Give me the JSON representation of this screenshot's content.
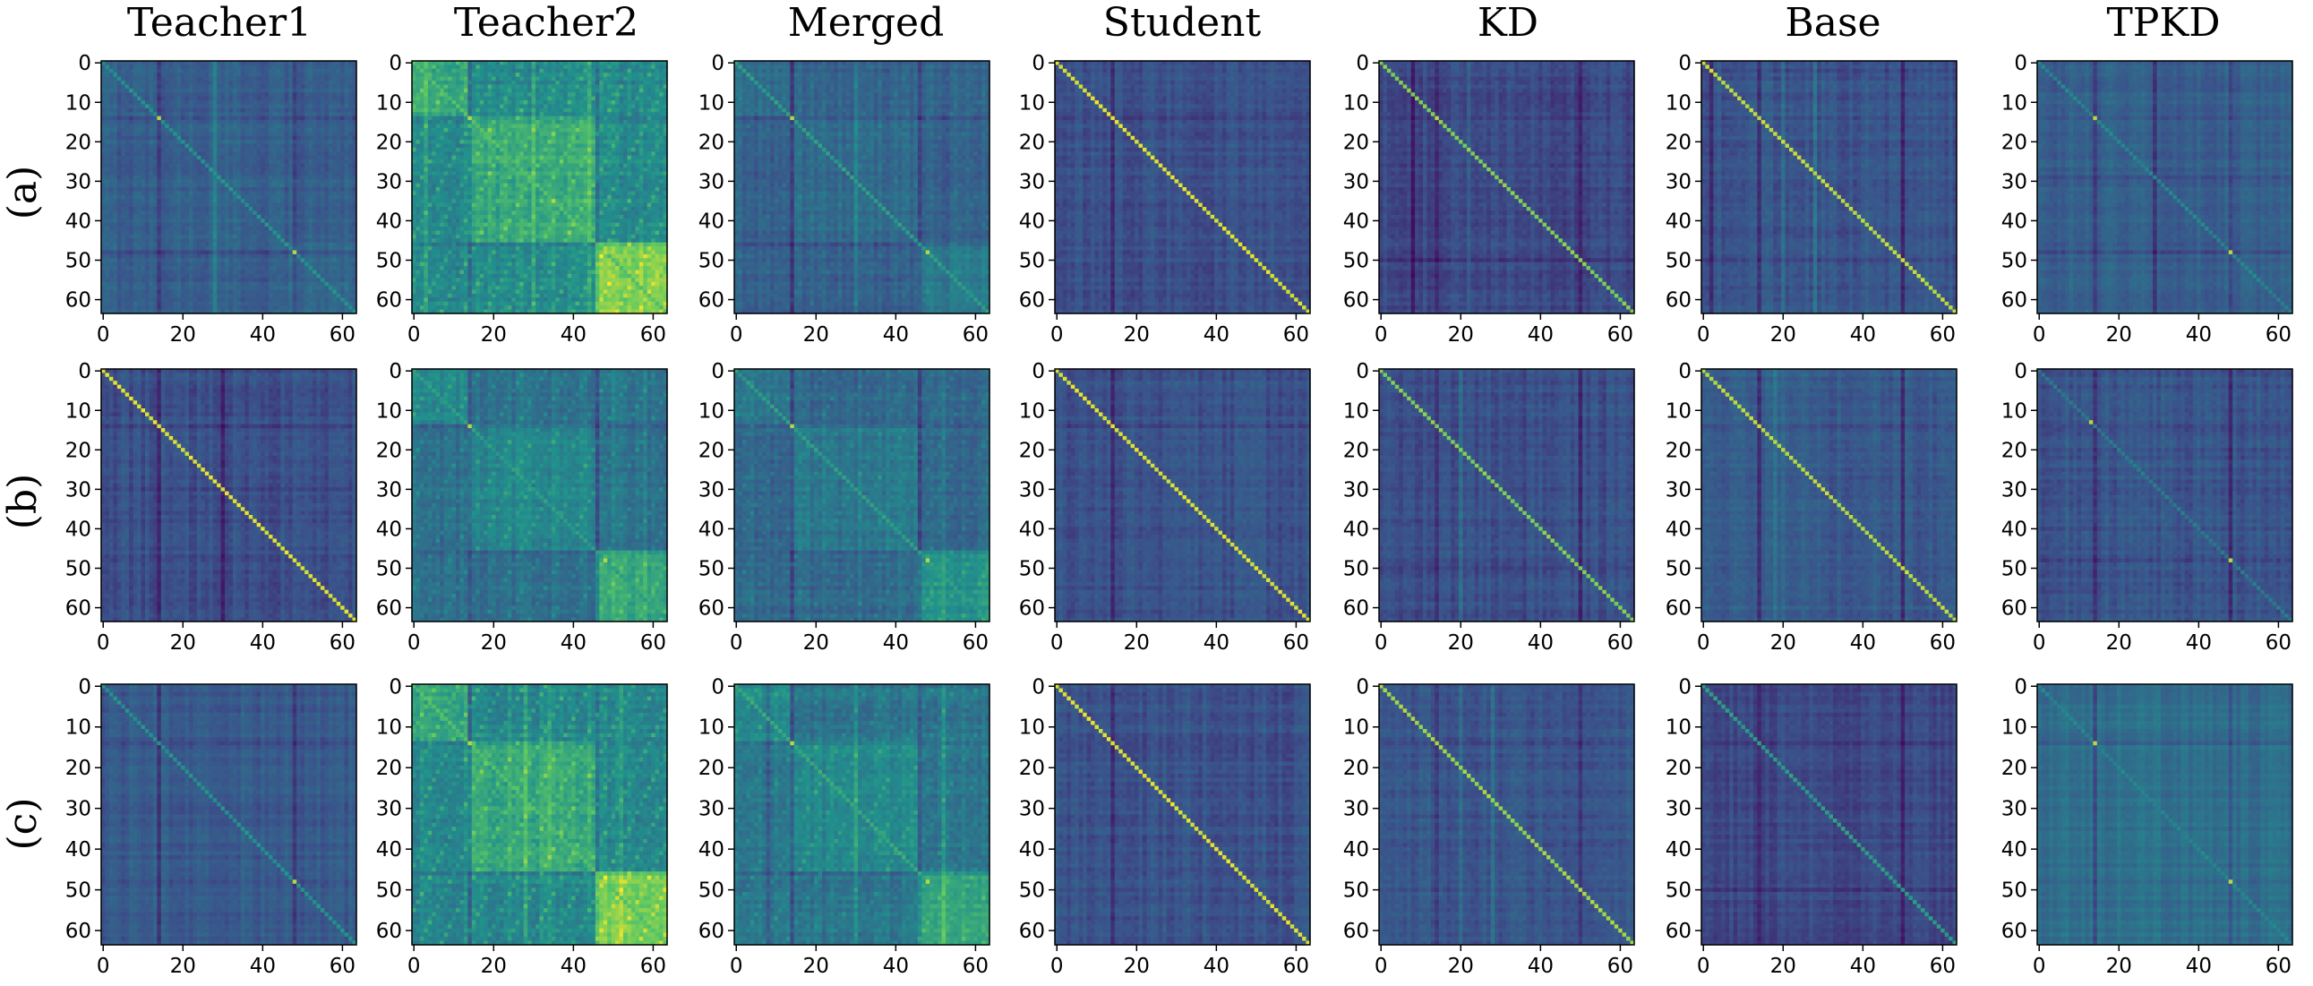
{
  "figure": {
    "row_labels": [
      "(a)",
      "(b)",
      "(c)"
    ],
    "column_titles": [
      "Teacher1",
      "Teacher2",
      "Merged",
      "Student",
      "KD",
      "Base",
      "TPKD"
    ]
  },
  "chart_data": {
    "type": "heatmap",
    "description": "7 x 3 grid of 64x64 similarity matrices",
    "matrix_size": 64,
    "x_ticks": [
      0,
      20,
      40,
      60
    ],
    "x_tick_labels": [
      "0",
      "20",
      "40",
      "60"
    ],
    "y_ticks": [
      0,
      10,
      20,
      30,
      40,
      50,
      60
    ],
    "y_tick_labels": [
      "0",
      "10",
      "20",
      "30",
      "40",
      "50",
      "60"
    ],
    "xlim": [
      0,
      63
    ],
    "ylim": [
      63,
      0
    ],
    "colormap": "viridis",
    "colormap_stops": [
      "#440154",
      "#3b528b",
      "#21918c",
      "#5ec962",
      "#fde725"
    ],
    "panels": [
      {
        "row": "(a)",
        "column": "Teacher1",
        "base": 0.3,
        "diag": 0.5,
        "dark_cols": [
          14,
          48
        ],
        "bright_cols": [
          28
        ],
        "diag_highlights": [
          14,
          48
        ],
        "block_strength": 0.02,
        "noise": 0.05
      },
      {
        "row": "(a)",
        "column": "Teacher2",
        "base": 0.52,
        "diag": 0.7,
        "dark_cols": [
          14,
          46
        ],
        "bright_cols": [
          3,
          30,
          44
        ],
        "diag_highlights": [
          14,
          35,
          48
        ],
        "block_strength": 0.2,
        "noise": 0.1
      },
      {
        "row": "(a)",
        "column": "Merged",
        "base": 0.32,
        "diag": 0.55,
        "dark_cols": [
          14,
          46
        ],
        "bright_cols": [
          30
        ],
        "diag_highlights": [
          14,
          48
        ],
        "block_strength": 0.06,
        "noise": 0.06
      },
      {
        "row": "(a)",
        "column": "Student",
        "base": 0.25,
        "diag": 0.95,
        "dark_cols": [
          14
        ],
        "bright_cols": [],
        "diag_highlights": [],
        "block_strength": 0.0,
        "noise": 0.05
      },
      {
        "row": "(a)",
        "column": "KD",
        "base": 0.22,
        "diag": 0.8,
        "dark_cols": [
          8,
          14,
          50
        ],
        "bright_cols": [
          22
        ],
        "diag_highlights": [
          14
        ],
        "block_strength": 0.0,
        "noise": 0.05
      },
      {
        "row": "(a)",
        "column": "Base",
        "base": 0.26,
        "diag": 0.9,
        "dark_cols": [
          2,
          14,
          50
        ],
        "bright_cols": [
          20,
          28
        ],
        "diag_highlights": [
          5
        ],
        "block_strength": 0.0,
        "noise": 0.05
      },
      {
        "row": "(a)",
        "column": "TPKD",
        "base": 0.3,
        "diag": 0.45,
        "dark_cols": [
          14,
          29,
          48
        ],
        "bright_cols": [],
        "diag_highlights": [
          14,
          48
        ],
        "block_strength": 0.0,
        "noise": 0.04
      },
      {
        "row": "(b)",
        "column": "Teacher1",
        "base": 0.24,
        "diag": 0.95,
        "dark_cols": [
          14,
          30
        ],
        "bright_cols": [],
        "diag_highlights": [],
        "block_strength": 0.0,
        "noise": 0.05
      },
      {
        "row": "(b)",
        "column": "Teacher2",
        "base": 0.4,
        "diag": 0.55,
        "dark_cols": [
          14,
          46
        ],
        "bright_cols": [
          50,
          58
        ],
        "diag_highlights": [
          14,
          48
        ],
        "block_strength": 0.14,
        "noise": 0.07
      },
      {
        "row": "(b)",
        "column": "Merged",
        "base": 0.36,
        "diag": 0.55,
        "dark_cols": [
          14,
          46
        ],
        "bright_cols": [
          52
        ],
        "diag_highlights": [
          14,
          48
        ],
        "block_strength": 0.1,
        "noise": 0.07
      },
      {
        "row": "(b)",
        "column": "Student",
        "base": 0.25,
        "diag": 0.95,
        "dark_cols": [
          14
        ],
        "bright_cols": [],
        "diag_highlights": [],
        "block_strength": 0.0,
        "noise": 0.05
      },
      {
        "row": "(b)",
        "column": "KD",
        "base": 0.24,
        "diag": 0.8,
        "dark_cols": [
          14,
          50
        ],
        "bright_cols": [
          20
        ],
        "diag_highlights": [],
        "block_strength": 0.0,
        "noise": 0.05
      },
      {
        "row": "(b)",
        "column": "Base",
        "base": 0.28,
        "diag": 0.9,
        "dark_cols": [
          14,
          50
        ],
        "bright_cols": [
          18,
          20
        ],
        "diag_highlights": [
          5
        ],
        "block_strength": 0.0,
        "noise": 0.05
      },
      {
        "row": "(b)",
        "column": "TPKD",
        "base": 0.26,
        "diag": 0.4,
        "dark_cols": [
          14,
          48
        ],
        "bright_cols": [],
        "diag_highlights": [
          13,
          48
        ],
        "block_strength": 0.0,
        "noise": 0.05
      },
      {
        "row": "(c)",
        "column": "Teacher1",
        "base": 0.28,
        "diag": 0.5,
        "dark_cols": [
          14,
          48
        ],
        "bright_cols": [],
        "diag_highlights": [
          48
        ],
        "block_strength": 0.0,
        "noise": 0.04
      },
      {
        "row": "(c)",
        "column": "Teacher2",
        "base": 0.52,
        "diag": 0.7,
        "dark_cols": [
          14,
          46
        ],
        "bright_cols": [
          28,
          34,
          52
        ],
        "diag_highlights": [
          14,
          48
        ],
        "block_strength": 0.2,
        "noise": 0.1
      },
      {
        "row": "(c)",
        "column": "Merged",
        "base": 0.42,
        "diag": 0.6,
        "dark_cols": [
          8,
          14,
          46
        ],
        "bright_cols": [
          30,
          52
        ],
        "diag_highlights": [
          14,
          48
        ],
        "block_strength": 0.12,
        "noise": 0.08
      },
      {
        "row": "(c)",
        "column": "Student",
        "base": 0.25,
        "diag": 0.95,
        "dark_cols": [
          14
        ],
        "bright_cols": [],
        "diag_highlights": [],
        "block_strength": 0.0,
        "noise": 0.05
      },
      {
        "row": "(c)",
        "column": "KD",
        "base": 0.26,
        "diag": 0.85,
        "dark_cols": [
          14,
          50
        ],
        "bright_cols": [
          20,
          28
        ],
        "diag_highlights": [],
        "block_strength": 0.0,
        "noise": 0.05
      },
      {
        "row": "(c)",
        "column": "Base",
        "base": 0.22,
        "diag": 0.55,
        "dark_cols": [
          14,
          50
        ],
        "bright_cols": [],
        "diag_highlights": [],
        "block_strength": 0.0,
        "noise": 0.04
      },
      {
        "row": "(c)",
        "column": "TPKD",
        "base": 0.36,
        "diag": 0.45,
        "dark_cols": [
          14,
          48
        ],
        "bright_cols": [],
        "diag_highlights": [
          14,
          48
        ],
        "block_strength": 0.0,
        "noise": 0.03
      }
    ]
  }
}
